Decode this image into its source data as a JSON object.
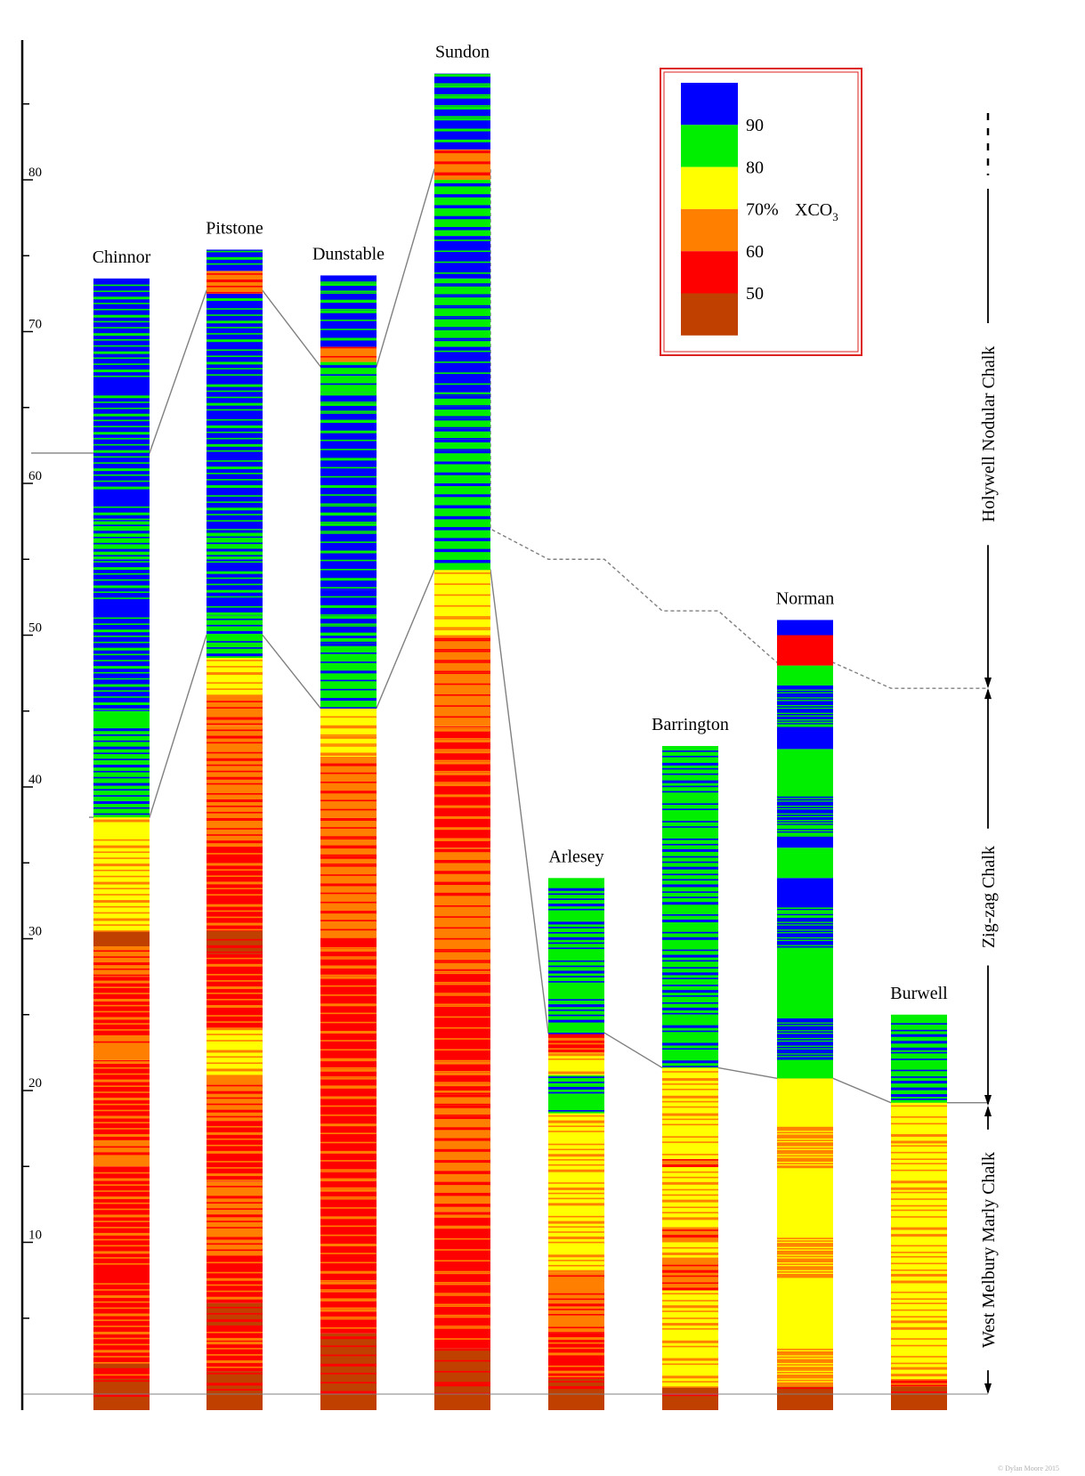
{
  "chart_data": {
    "type": "stratigraphic-columns",
    "title": "",
    "ylabel": "",
    "ylim": [
      0,
      88
    ],
    "y_ticks": [
      10,
      20,
      30,
      40,
      50,
      60,
      70,
      80
    ],
    "y_tick_labels": [
      "10",
      "20",
      "30",
      "40",
      "50",
      "60",
      "70",
      "80"
    ],
    "colors": {
      "c90": "#0000ff",
      "c80": "#00ee00",
      "c70": "#ffff00",
      "c60": "#ff8000",
      "c50": "#ff0000",
      "c40": "#c04000",
      "line": "#808080",
      "axis": "#000000",
      "legend_border": "#dd2222"
    },
    "legend": {
      "labels": [
        "90",
        "80",
        "70%",
        "60",
        "50"
      ],
      "unit_main": "XCO",
      "unit_sub": "3",
      "classes": [
        "c90",
        "c80",
        "c70",
        "c60",
        "c50",
        "c40"
      ]
    },
    "formations": [
      {
        "name": "Holywell Nodular Chalk",
        "from": 46.5,
        "to": 80,
        "continues": true
      },
      {
        "name": "Zig-zag Chalk",
        "from": 19,
        "to": 46.5
      },
      {
        "name": "West Melbury Marly Chalk",
        "from": 0,
        "to": 19
      }
    ],
    "columns": [
      {
        "name": "Chinnor",
        "top": 73.5,
        "segments": [
          {
            "from": 0,
            "to": 1,
            "c": "c40"
          },
          {
            "from": 1,
            "to": 1.6,
            "c": "c50"
          },
          {
            "from": 1.6,
            "to": 2,
            "c": "c40"
          },
          {
            "from": 2,
            "to": 15,
            "c": "c50"
          },
          {
            "from": 15,
            "to": 16.7,
            "c": "c60"
          },
          {
            "from": 16.7,
            "to": 22,
            "c": "c50"
          },
          {
            "from": 22,
            "to": 23.5,
            "c": "c60"
          },
          {
            "from": 23.5,
            "to": 27.5,
            "c": "c50"
          },
          {
            "from": 27.5,
            "to": 29.5,
            "c": "c60"
          },
          {
            "from": 29.5,
            "to": 30.5,
            "c": "c40"
          },
          {
            "from": 30.5,
            "to": 38,
            "c": "c70"
          },
          {
            "from": 38,
            "to": 41,
            "c": "c80"
          },
          {
            "from": 41,
            "to": 45,
            "c": "c80"
          },
          {
            "from": 45,
            "to": 50,
            "c": "c90"
          },
          {
            "from": 50,
            "to": 55,
            "c": "c90"
          },
          {
            "from": 55,
            "to": 57.5,
            "c": "c80"
          },
          {
            "from": 57.5,
            "to": 63,
            "c": "c90"
          },
          {
            "from": 63,
            "to": 73.5,
            "c": "c90"
          }
        ]
      },
      {
        "name": "Pitstone",
        "top": 75.4,
        "segments": [
          {
            "from": 0,
            "to": 1.5,
            "c": "c40"
          },
          {
            "from": 1.5,
            "to": 4.5,
            "c": "c50"
          },
          {
            "from": 4.5,
            "to": 6,
            "c": "c40"
          },
          {
            "from": 6,
            "to": 9,
            "c": "c50"
          },
          {
            "from": 9,
            "to": 14,
            "c": "c60"
          },
          {
            "from": 14,
            "to": 18,
            "c": "c50"
          },
          {
            "from": 18,
            "to": 21,
            "c": "c60"
          },
          {
            "from": 21,
            "to": 24,
            "c": "c70"
          },
          {
            "from": 24,
            "to": 29,
            "c": "c50"
          },
          {
            "from": 29,
            "to": 30.5,
            "c": "c40"
          },
          {
            "from": 30.5,
            "to": 36,
            "c": "c50"
          },
          {
            "from": 36,
            "to": 44,
            "c": "c60"
          },
          {
            "from": 44,
            "to": 46,
            "c": "c60"
          },
          {
            "from": 46,
            "to": 48.5,
            "c": "c70"
          },
          {
            "from": 48.5,
            "to": 51.3,
            "c": "c80"
          },
          {
            "from": 51.3,
            "to": 55,
            "c": "c90"
          },
          {
            "from": 55,
            "to": 57,
            "c": "c80"
          },
          {
            "from": 57,
            "to": 72.5,
            "c": "c90"
          },
          {
            "from": 72.5,
            "to": 74,
            "c": "c60"
          },
          {
            "from": 74,
            "to": 75.4,
            "c": "c90"
          }
        ]
      },
      {
        "name": "Dunstable",
        "top": 73.7,
        "segments": [
          {
            "from": 0,
            "to": 4,
            "c": "c40"
          },
          {
            "from": 4,
            "to": 30,
            "c": "c50"
          },
          {
            "from": 30,
            "to": 33,
            "c": "c60"
          },
          {
            "from": 33,
            "to": 38,
            "c": "c60"
          },
          {
            "from": 38,
            "to": 42,
            "c": "c60"
          },
          {
            "from": 42,
            "to": 45.2,
            "c": "c70"
          },
          {
            "from": 45.2,
            "to": 49.8,
            "c": "c80"
          },
          {
            "from": 49.8,
            "to": 53,
            "c": "c90"
          },
          {
            "from": 53,
            "to": 58,
            "c": "c90"
          },
          {
            "from": 58,
            "to": 66,
            "c": "c90"
          },
          {
            "from": 66,
            "to": 68,
            "c": "c80"
          },
          {
            "from": 68,
            "to": 69,
            "c": "c60"
          },
          {
            "from": 69,
            "to": 73.7,
            "c": "c90"
          }
        ]
      },
      {
        "name": "Sundon",
        "top": 87,
        "segments": [
          {
            "from": 0,
            "to": 3,
            "c": "c40"
          },
          {
            "from": 3,
            "to": 12,
            "c": "c50"
          },
          {
            "from": 12,
            "to": 20,
            "c": "c60"
          },
          {
            "from": 20,
            "to": 28,
            "c": "c50"
          },
          {
            "from": 28,
            "to": 36,
            "c": "c60"
          },
          {
            "from": 36,
            "to": 44,
            "c": "c50"
          },
          {
            "from": 44,
            "to": 50,
            "c": "c60"
          },
          {
            "from": 50,
            "to": 54.3,
            "c": "c70"
          },
          {
            "from": 54.3,
            "to": 60,
            "c": "c80"
          },
          {
            "from": 60,
            "to": 66,
            "c": "c80"
          },
          {
            "from": 66,
            "to": 69,
            "c": "c90"
          },
          {
            "from": 69,
            "to": 73.5,
            "c": "c80"
          },
          {
            "from": 73.5,
            "to": 76.3,
            "c": "c90"
          },
          {
            "from": 76.3,
            "to": 80,
            "c": "c80"
          },
          {
            "from": 80,
            "to": 82,
            "c": "c60"
          },
          {
            "from": 82,
            "to": 87,
            "c": "c90"
          }
        ]
      },
      {
        "name": "Arlesey",
        "top": 34,
        "segments": [
          {
            "from": 0,
            "to": 1,
            "c": "c40"
          },
          {
            "from": 1,
            "to": 4,
            "c": "c50"
          },
          {
            "from": 4,
            "to": 8,
            "c": "c60"
          },
          {
            "from": 8,
            "to": 18.5,
            "c": "c70"
          },
          {
            "from": 18.5,
            "to": 21,
            "c": "c80"
          },
          {
            "from": 21,
            "to": 22.5,
            "c": "c70"
          },
          {
            "from": 22.5,
            "to": 23.8,
            "c": "c50"
          },
          {
            "from": 23.8,
            "to": 34,
            "c": "c80"
          }
        ]
      },
      {
        "name": "Barrington",
        "top": 42.7,
        "segments": [
          {
            "from": 0,
            "to": 0.5,
            "c": "c40"
          },
          {
            "from": 0.5,
            "to": 7,
            "c": "c70"
          },
          {
            "from": 7,
            "to": 9,
            "c": "c60"
          },
          {
            "from": 9,
            "to": 10,
            "c": "c70"
          },
          {
            "from": 10,
            "to": 11,
            "c": "c60"
          },
          {
            "from": 11,
            "to": 15,
            "c": "c70"
          },
          {
            "from": 15,
            "to": 15.5,
            "c": "c60"
          },
          {
            "from": 15.5,
            "to": 21.5,
            "c": "c70"
          },
          {
            "from": 21.5,
            "to": 23,
            "c": "c80"
          },
          {
            "from": 23,
            "to": 42.7,
            "c": "c80"
          }
        ]
      },
      {
        "name": "Norman",
        "top": 51,
        "segments": [
          {
            "from": 0,
            "to": 0.5,
            "c": "c40"
          },
          {
            "from": 0.5,
            "to": 20.8,
            "c": "c70"
          },
          {
            "from": 20.8,
            "to": 31.5,
            "c": "c80"
          },
          {
            "from": 31.5,
            "to": 34,
            "c": "c90"
          },
          {
            "from": 34,
            "to": 36,
            "c": "c80"
          },
          {
            "from": 36,
            "to": 38,
            "c": "c90"
          },
          {
            "from": 38,
            "to": 42.5,
            "c": "c80"
          },
          {
            "from": 42.5,
            "to": 44.5,
            "c": "c90"
          },
          {
            "from": 44.5,
            "to": 48,
            "c": "c80"
          },
          {
            "from": 48,
            "to": 50,
            "c": "c50"
          },
          {
            "from": 50,
            "to": 51,
            "c": "c90"
          }
        ]
      },
      {
        "name": "Burwell",
        "top": 25,
        "segments": [
          {
            "from": 0,
            "to": 0.5,
            "c": "c40"
          },
          {
            "from": 0.5,
            "to": 1,
            "c": "c60"
          },
          {
            "from": 1,
            "to": 19.2,
            "c": "c70"
          },
          {
            "from": 19.2,
            "to": 25,
            "c": "c80"
          }
        ]
      }
    ],
    "correlation_lines": [
      {
        "style": "solid",
        "points": [
          [
            0,
            62
          ],
          [
            0,
            62
          ],
          [
            1,
            72.7
          ],
          [
            1,
            72.7
          ],
          [
            2,
            67.7
          ],
          [
            2,
            67.7
          ],
          [
            3,
            80.7
          ],
          [
            3,
            80.7
          ]
        ]
      },
      {
        "style": "solid",
        "points": [
          [
            0,
            38
          ],
          [
            0,
            38
          ],
          [
            1,
            50
          ],
          [
            1,
            50
          ],
          [
            2,
            45.2
          ],
          [
            2,
            45.2
          ],
          [
            3,
            54.3
          ],
          [
            3,
            54.3
          ],
          [
            4,
            23.8
          ],
          [
            4,
            23.8
          ],
          [
            5,
            21.5
          ],
          [
            5,
            21.5
          ],
          [
            6,
            20.8
          ],
          [
            6,
            20.8
          ],
          [
            7,
            19.2
          ],
          [
            7,
            19.2
          ]
        ]
      },
      {
        "style": "dashed",
        "points": [
          [
            3,
            80.7
          ],
          [
            3,
            57
          ],
          [
            4,
            55
          ],
          [
            4,
            55
          ],
          [
            5,
            51.6
          ],
          [
            5,
            51.6
          ],
          [
            6,
            48.2
          ],
          [
            6,
            48.2
          ],
          [
            7,
            46.5
          ],
          [
            7,
            46.5
          ]
        ]
      }
    ],
    "copyright": "© Dylan Moore 2015"
  }
}
